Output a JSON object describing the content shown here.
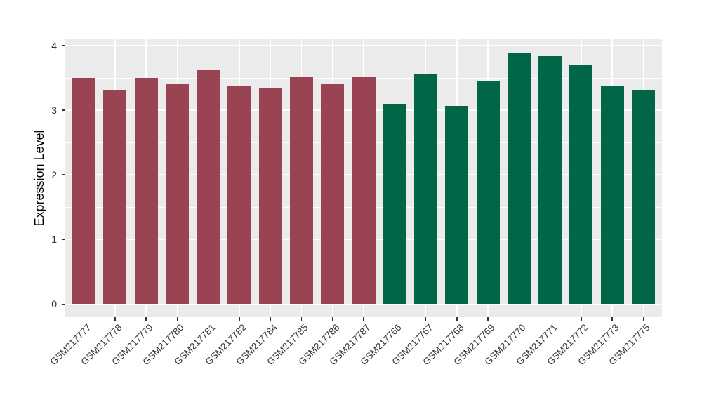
{
  "figure": {
    "background": "#FFFFFF",
    "panel_background": "#EBEBEB",
    "grid_color": "#FFFFFF",
    "axis_text_color": "#333333",
    "axis_title_color": "#000000",
    "tick_mark_color": "#333333"
  },
  "chart_data": {
    "type": "bar",
    "title": "",
    "xlabel": "",
    "ylabel": "Expression Level",
    "ylim": [
      -0.2,
      4.1
    ],
    "yticks": [
      0,
      1,
      2,
      3,
      4
    ],
    "y_minor_ticks": [
      0.5,
      1.5,
      2.5,
      3.5
    ],
    "grid": "on",
    "legend_position": "none",
    "x_tick_angle_deg": 45,
    "categories": [
      "GSM217777",
      "GSM217778",
      "GSM217779",
      "GSM217780",
      "GSM217781",
      "GSM217782",
      "GSM217784",
      "GSM217785",
      "GSM217786",
      "GSM217787",
      "GSM217766",
      "GSM217767",
      "GSM217768",
      "GSM217769",
      "GSM217770",
      "GSM217771",
      "GSM217772",
      "GSM217773",
      "GSM217775"
    ],
    "values": [
      3.5,
      3.32,
      3.5,
      3.41,
      3.62,
      3.38,
      3.34,
      3.51,
      3.41,
      3.51,
      3.1,
      3.56,
      3.06,
      3.46,
      3.89,
      3.84,
      3.69,
      3.37,
      3.32
    ],
    "bar_groups": [
      "group1",
      "group1",
      "group1",
      "group1",
      "group1",
      "group1",
      "group1",
      "group1",
      "group1",
      "group1",
      "group2",
      "group2",
      "group2",
      "group2",
      "group2",
      "group2",
      "group2",
      "group2",
      "group2"
    ],
    "group_colors": {
      "group1": "#9A4453",
      "group2": "#006647"
    }
  }
}
